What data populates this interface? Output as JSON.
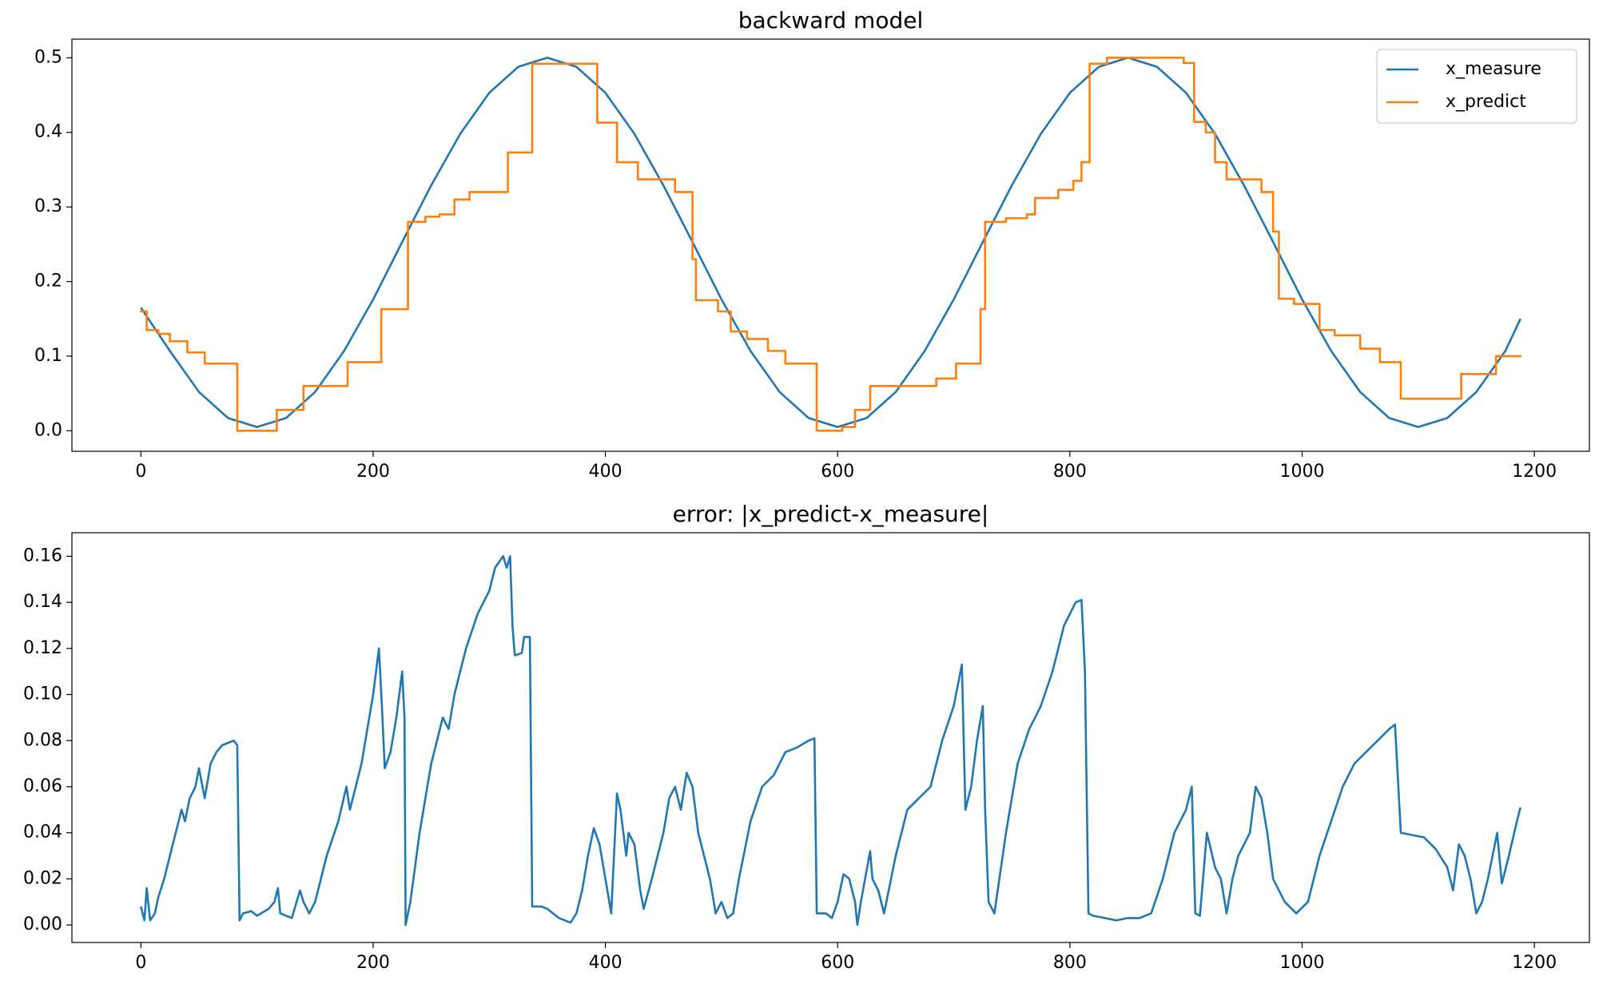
{
  "chart_data": [
    {
      "type": "line",
      "title": "backward model",
      "xlim": [
        -59.4,
        1247.4
      ],
      "ylim": [
        -0.0275,
        0.525
      ],
      "xticks": [
        0,
        200,
        400,
        600,
        800,
        1000,
        1200
      ],
      "yticks": [
        {
          "value": 0,
          "label": "0.0"
        },
        0.1,
        0.2,
        0.3,
        0.4,
        0.5
      ],
      "legend": "upper right",
      "series": [
        {
          "name": "x_measure",
          "color": "#1f77b4",
          "drawstyle": "default",
          "x": [
            0,
            25,
            50,
            75,
            100,
            125,
            150,
            175,
            200,
            225,
            250,
            275,
            300,
            325,
            350,
            375,
            400,
            425,
            450,
            475,
            500,
            525,
            550,
            575,
            600,
            625,
            650,
            675,
            700,
            725,
            750,
            775,
            800,
            825,
            850,
            875,
            900,
            925,
            950,
            975,
            1000,
            1025,
            1050,
            1075,
            1100,
            1125,
            1150,
            1175,
            1188
          ],
          "values": [
            0.165,
            0.107,
            0.052,
            0.017,
            0.005,
            0.017,
            0.052,
            0.107,
            0.176,
            0.253,
            0.329,
            0.398,
            0.453,
            0.488,
            0.5,
            0.488,
            0.453,
            0.398,
            0.329,
            0.253,
            0.176,
            0.107,
            0.052,
            0.017,
            0.005,
            0.017,
            0.052,
            0.107,
            0.176,
            0.253,
            0.329,
            0.398,
            0.453,
            0.488,
            0.5,
            0.488,
            0.453,
            0.398,
            0.329,
            0.253,
            0.176,
            0.107,
            0.052,
            0.017,
            0.005,
            0.017,
            0.052,
            0.107,
            0.15
          ]
        },
        {
          "name": "x_predict",
          "color": "#ff7f0e",
          "drawstyle": "steps-post",
          "x": [
            0,
            5,
            15,
            25,
            40,
            55,
            83,
            117,
            140,
            178,
            207,
            230,
            245,
            257,
            270,
            283,
            316,
            337,
            393,
            410,
            428,
            460,
            475,
            478,
            497,
            508,
            522,
            540,
            555,
            582,
            604,
            615,
            628,
            685,
            702,
            723,
            727,
            745,
            763,
            770,
            790,
            803,
            810,
            817,
            832,
            888,
            898,
            907,
            917,
            925,
            935,
            965,
            975,
            980,
            993,
            1015,
            1028,
            1050,
            1067,
            1085,
            1137,
            1167,
            1188
          ],
          "values": [
            0.16,
            0.135,
            0.13,
            0.12,
            0.105,
            0.09,
            0.0,
            0.028,
            0.06,
            0.092,
            0.163,
            0.28,
            0.287,
            0.29,
            0.31,
            0.32,
            0.373,
            0.492,
            0.413,
            0.36,
            0.337,
            0.32,
            0.23,
            0.175,
            0.16,
            0.133,
            0.123,
            0.107,
            0.09,
            0.0,
            0.005,
            0.028,
            0.06,
            0.07,
            0.09,
            0.163,
            0.28,
            0.285,
            0.29,
            0.312,
            0.323,
            0.335,
            0.36,
            0.492,
            0.5,
            0.5,
            0.493,
            0.414,
            0.4,
            0.36,
            0.337,
            0.32,
            0.267,
            0.177,
            0.17,
            0.135,
            0.128,
            0.11,
            0.092,
            0.043,
            0.076,
            0.1,
            0.1
          ]
        }
      ]
    },
    {
      "type": "line",
      "title": "error: |x_predict-x_measure|",
      "xlim": [
        -59.4,
        1247.4
      ],
      "ylim": [
        -0.0076,
        0.1702
      ],
      "xticks": [
        0,
        200,
        400,
        600,
        800,
        1000,
        1200
      ],
      "yticks": [
        {
          "value": 0,
          "label": "0.00"
        },
        0.02,
        0.04,
        0.06,
        0.08,
        {
          "value": 0.1,
          "label": "0.10"
        },
        0.12,
        0.14,
        0.16
      ],
      "series": [
        {
          "color": "#1f77b4",
          "drawstyle": "default",
          "x": [
            0,
            3,
            5,
            8,
            12,
            15,
            20,
            25,
            30,
            35,
            38,
            42,
            47,
            50,
            55,
            60,
            65,
            70,
            80,
            83,
            85,
            88,
            95,
            100,
            110,
            115,
            118,
            120,
            130,
            137,
            140,
            145,
            150,
            155,
            160,
            170,
            177,
            180,
            185,
            190,
            195,
            200,
            205,
            208,
            210,
            215,
            220,
            225,
            227,
            228,
            232,
            240,
            250,
            255,
            260,
            265,
            270,
            275,
            280,
            290,
            300,
            305,
            312,
            315,
            318,
            320,
            322,
            328,
            330,
            335,
            337,
            345,
            350,
            360,
            370,
            375,
            380,
            385,
            390,
            395,
            400,
            405,
            410,
            413,
            418,
            420,
            425,
            430,
            433,
            440,
            450,
            455,
            460,
            465,
            470,
            475,
            480,
            490,
            495,
            500,
            505,
            510,
            515,
            525,
            535,
            545,
            555,
            565,
            575,
            580,
            582,
            590,
            595,
            600,
            605,
            610,
            615,
            617,
            620,
            628,
            630,
            635,
            640,
            650,
            660,
            670,
            680,
            690,
            700,
            707,
            710,
            715,
            720,
            725,
            727,
            730,
            735,
            745,
            755,
            765,
            775,
            785,
            795,
            800,
            805,
            810,
            813,
            816,
            820,
            830,
            840,
            850,
            860,
            870,
            880,
            890,
            900,
            905,
            908,
            912,
            918,
            925,
            930,
            935,
            940,
            945,
            955,
            960,
            965,
            970,
            975,
            985,
            995,
            1005,
            1015,
            1025,
            1035,
            1045,
            1055,
            1065,
            1075,
            1080,
            1085,
            1095,
            1105,
            1115,
            1125,
            1130,
            1135,
            1140,
            1145,
            1150,
            1155,
            1160,
            1168,
            1172,
            1178,
            1185,
            1188
          ],
          "values": [
            0.008,
            0.002,
            0.016,
            0.002,
            0.005,
            0.012,
            0.02,
            0.03,
            0.04,
            0.05,
            0.045,
            0.055,
            0.06,
            0.068,
            0.055,
            0.07,
            0.075,
            0.078,
            0.08,
            0.078,
            0.002,
            0.005,
            0.006,
            0.004,
            0.007,
            0.01,
            0.016,
            0.005,
            0.003,
            0.015,
            0.01,
            0.005,
            0.01,
            0.02,
            0.03,
            0.045,
            0.06,
            0.05,
            0.06,
            0.07,
            0.085,
            0.1,
            0.12,
            0.09,
            0.068,
            0.075,
            0.09,
            0.11,
            0.09,
            0.0,
            0.01,
            0.04,
            0.07,
            0.08,
            0.09,
            0.085,
            0.1,
            0.11,
            0.12,
            0.135,
            0.145,
            0.155,
            0.16,
            0.155,
            0.16,
            0.13,
            0.117,
            0.118,
            0.125,
            0.125,
            0.008,
            0.008,
            0.007,
            0.003,
            0.001,
            0.005,
            0.015,
            0.03,
            0.042,
            0.035,
            0.02,
            0.005,
            0.057,
            0.05,
            0.03,
            0.04,
            0.035,
            0.015,
            0.007,
            0.02,
            0.04,
            0.055,
            0.06,
            0.05,
            0.066,
            0.06,
            0.04,
            0.02,
            0.005,
            0.01,
            0.003,
            0.005,
            0.02,
            0.045,
            0.06,
            0.065,
            0.075,
            0.077,
            0.08,
            0.081,
            0.005,
            0.005,
            0.003,
            0.01,
            0.022,
            0.02,
            0.01,
            0.0,
            0.01,
            0.032,
            0.02,
            0.015,
            0.005,
            0.03,
            0.05,
            0.055,
            0.06,
            0.08,
            0.095,
            0.113,
            0.05,
            0.06,
            0.08,
            0.095,
            0.05,
            0.01,
            0.005,
            0.04,
            0.07,
            0.085,
            0.095,
            0.11,
            0.13,
            0.135,
            0.14,
            0.141,
            0.11,
            0.005,
            0.004,
            0.003,
            0.002,
            0.003,
            0.003,
            0.005,
            0.02,
            0.04,
            0.05,
            0.06,
            0.005,
            0.004,
            0.04,
            0.025,
            0.02,
            0.005,
            0.02,
            0.03,
            0.04,
            0.06,
            0.055,
            0.04,
            0.02,
            0.01,
            0.005,
            0.01,
            0.03,
            0.045,
            0.06,
            0.07,
            0.075,
            0.08,
            0.085,
            0.087,
            0.04,
            0.039,
            0.038,
            0.033,
            0.025,
            0.015,
            0.035,
            0.03,
            0.02,
            0.005,
            0.01,
            0.02,
            0.04,
            0.018,
            0.03,
            0.045,
            0.051
          ]
        }
      ]
    }
  ]
}
